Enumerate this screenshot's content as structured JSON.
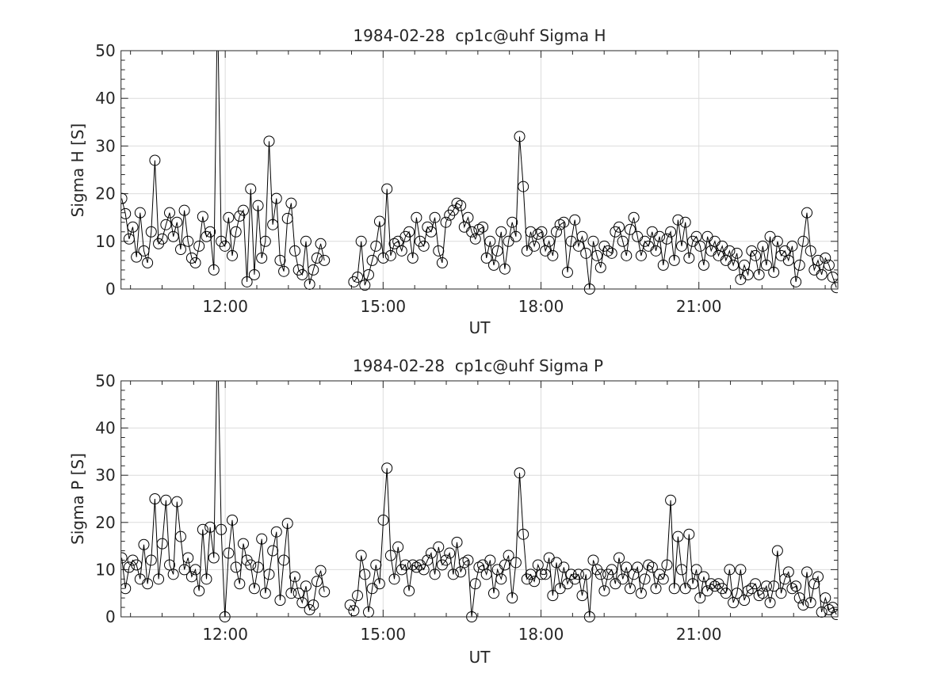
{
  "chart_data": [
    {
      "type": "line",
      "title": "1984-02-28  cp1c@uhf Sigma H",
      "xlabel": "UT",
      "ylabel": "Sigma H [S]",
      "xlim_hours": [
        10.02,
        23.64
      ],
      "ylim": [
        0,
        50
      ],
      "xticks": [
        {
          "value": 12,
          "label": "12:00"
        },
        {
          "value": 15,
          "label": "15:00"
        },
        {
          "value": 18,
          "label": "18:00"
        },
        {
          "value": 21,
          "label": "21:00"
        }
      ],
      "yticks": [
        {
          "value": 0,
          "label": "0"
        },
        {
          "value": 10,
          "label": "10"
        },
        {
          "value": 20,
          "label": "20"
        },
        {
          "value": 30,
          "label": "30"
        },
        {
          "value": 40,
          "label": "40"
        },
        {
          "value": 50,
          "label": "50"
        }
      ],
      "grid": true,
      "marker": "circle",
      "x_start": "10:02",
      "x_step_minutes": 4.2,
      "values": [
        19,
        15.8,
        10.5,
        13,
        6.7,
        16,
        8,
        5.5,
        12,
        27,
        9.5,
        10.5,
        13.5,
        16,
        11,
        14,
        8.3,
        16.5,
        10,
        6.5,
        5.5,
        9,
        15.2,
        11,
        12,
        4,
        60,
        10,
        9,
        15,
        7,
        12,
        15.3,
        16.5,
        1.5,
        21,
        3,
        17.5,
        6.5,
        10,
        31,
        13.5,
        19,
        6,
        3.7,
        14.8,
        18,
        8,
        4,
        3,
        10,
        1,
        4,
        6.5,
        9.5,
        6,
        null,
        null,
        null,
        null,
        null,
        null,
        null,
        1.5,
        2.5,
        10,
        0.8,
        3,
        6,
        9,
        14.2,
        6.5,
        21,
        7,
        9.5,
        10,
        8,
        11,
        12,
        6.5,
        15,
        10,
        9,
        13,
        12,
        15,
        8,
        5.5,
        14,
        15.5,
        16.5,
        18,
        17.5,
        13,
        15,
        12,
        10.5,
        12.5,
        13,
        6.5,
        10,
        5,
        8,
        12,
        4.2,
        10,
        14,
        11,
        32,
        21.5,
        8,
        12,
        9,
        11.5,
        12,
        8,
        10,
        7,
        12,
        13.5,
        14,
        3.5,
        10,
        14.5,
        9,
        11,
        7.5,
        0,
        10,
        7,
        4.5,
        9,
        8,
        7.5,
        12,
        13,
        10,
        7,
        12.5,
        15,
        11,
        7,
        10,
        9,
        12,
        8,
        11,
        5,
        10.5,
        12,
        6,
        14.5,
        9,
        14,
        6.5,
        10,
        11,
        9,
        5,
        11,
        8,
        10,
        7,
        9,
        6,
        8,
        5,
        7.5,
        2,
        5,
        3,
        8,
        7,
        3,
        9,
        5,
        11,
        3.5,
        10,
        7,
        8,
        6,
        9,
        1.5,
        5,
        10,
        16,
        8,
        4,
        6,
        3,
        6.5,
        5,
        2.5,
        0.3
      ]
    },
    {
      "type": "line",
      "title": "1984-02-28  cp1c@uhf Sigma P",
      "xlabel": "UT",
      "ylabel": "Sigma P [S]",
      "xlim_hours": [
        10.02,
        23.64
      ],
      "ylim": [
        0,
        50
      ],
      "xticks": [
        {
          "value": 12,
          "label": "12:00"
        },
        {
          "value": 15,
          "label": "15:00"
        },
        {
          "value": 18,
          "label": "18:00"
        },
        {
          "value": 21,
          "label": "21:00"
        }
      ],
      "yticks": [
        {
          "value": 0,
          "label": "0"
        },
        {
          "value": 10,
          "label": "10"
        },
        {
          "value": 20,
          "label": "20"
        },
        {
          "value": 30,
          "label": "30"
        },
        {
          "value": 40,
          "label": "40"
        },
        {
          "value": 50,
          "label": "50"
        }
      ],
      "grid": true,
      "marker": "circle",
      "x_start": "10:02",
      "x_step_minutes": 4.2,
      "values": [
        12.5,
        6,
        10.5,
        12,
        11,
        8,
        15.3,
        7,
        12,
        25,
        8,
        15.5,
        24.7,
        11,
        9,
        24.4,
        17,
        10,
        12.5,
        8.5,
        10,
        5.5,
        18.5,
        8,
        19,
        12.5,
        60,
        18.5,
        0,
        13.5,
        20.5,
        10.5,
        7,
        15.5,
        12,
        11,
        6,
        10.5,
        16.5,
        5,
        9,
        14,
        18,
        3.5,
        12,
        19.8,
        5,
        8.5,
        5,
        3,
        6.5,
        1.5,
        2.5,
        7.5,
        9.8,
        5.3,
        null,
        null,
        null,
        null,
        null,
        null,
        2.5,
        1.3,
        4.5,
        13,
        9,
        1,
        6,
        11,
        7,
        20.5,
        31.5,
        13,
        8,
        14.8,
        10,
        11,
        5.5,
        11,
        10.5,
        11,
        10,
        12,
        13.5,
        9,
        14.8,
        11,
        12,
        13.5,
        9,
        15.8,
        9.5,
        11.5,
        12,
        0,
        7,
        10.5,
        11,
        9,
        12,
        5,
        10,
        8,
        11,
        13,
        4,
        11.5,
        30.5,
        17.5,
        8,
        9,
        7.5,
        11,
        9,
        9,
        12.5,
        4.5,
        11.5,
        6,
        10.5,
        7,
        9,
        8,
        9,
        4.5,
        9,
        0,
        12,
        10,
        9,
        5.5,
        9,
        10,
        7,
        12.5,
        8,
        10.5,
        6,
        9,
        10.5,
        5,
        8,
        11,
        10.5,
        6,
        9,
        8,
        11,
        24.7,
        6,
        17,
        10,
        6,
        17.5,
        7,
        10,
        4,
        8.5,
        5.5,
        7,
        6.5,
        7,
        6,
        5,
        10,
        3,
        5,
        10,
        3.5,
        5.5,
        6,
        7,
        4.5,
        5,
        6.5,
        3,
        6.5,
        14,
        5,
        8,
        9.5,
        6,
        6.5,
        4,
        2.5,
        9.5,
        3,
        7,
        8.5,
        1,
        4,
        1.5,
        2,
        0.5
      ]
    }
  ]
}
